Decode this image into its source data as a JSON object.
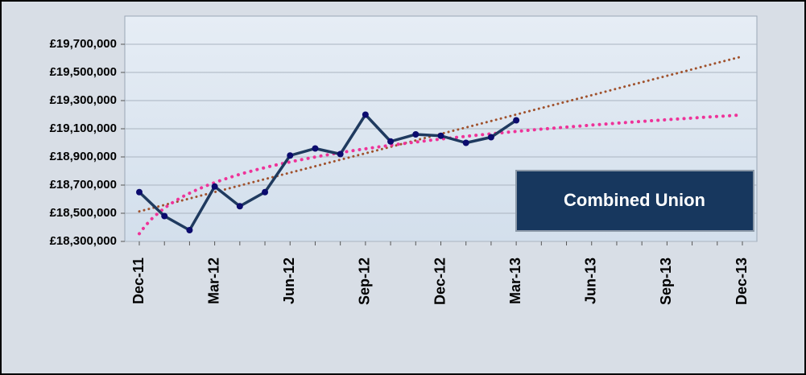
{
  "chart_data": {
    "type": "line",
    "categories": [
      "Dec-11",
      null,
      null,
      "Mar-12",
      null,
      null,
      "Jun-12",
      null,
      null,
      "Sep-12",
      null,
      null,
      "Dec-12",
      null,
      null,
      "Mar-13",
      null,
      null,
      "Jun-13",
      null,
      null,
      "Sep-13",
      null,
      null,
      "Dec-13"
    ],
    "series": [
      {
        "color": "#1f3a5f",
        "marker_color": "#0b0b6e",
        "values": [
          18650000,
          18480000,
          18380000,
          18690000,
          18550000,
          18650000,
          18910000,
          18960000,
          18920000,
          19200000,
          19010000,
          19060000,
          19050000,
          19000000,
          19040000,
          19160000,
          null,
          null,
          null,
          null,
          null,
          null,
          null,
          null,
          null
        ],
        "trendlines": [
          {
            "kind": "linear",
            "color": "#a0522d"
          },
          {
            "kind": "log",
            "color": "#ee3399"
          }
        ]
      }
    ],
    "ylim": [
      18300000,
      19900000
    ],
    "yticks": [
      {
        "value": 18300000,
        "label": "£18,300,000"
      },
      {
        "value": 18500000,
        "label": "£18,500,000"
      },
      {
        "value": 18700000,
        "label": "£18,700,000"
      },
      {
        "value": 18900000,
        "label": "£18,900,000"
      },
      {
        "value": 19100000,
        "label": "£19,100,000"
      },
      {
        "value": 19300000,
        "label": "£19,300,000"
      },
      {
        "value": 19500000,
        "label": "£19,500,000"
      },
      {
        "value": 19700000,
        "label": "£19,700,000"
      }
    ],
    "grid": true,
    "annotation": "Combined Union"
  }
}
